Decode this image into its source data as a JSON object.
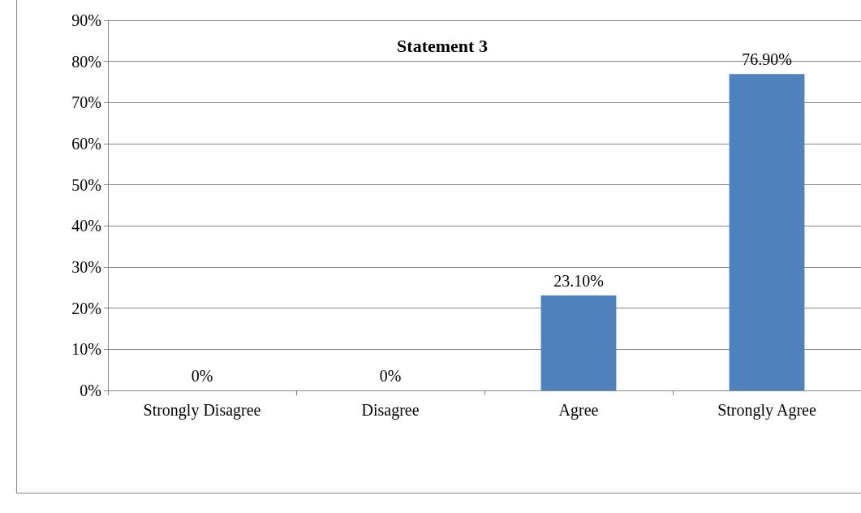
{
  "chart_data": {
    "type": "bar",
    "title": "Statement 3",
    "categories": [
      "Strongly Disagree",
      "Disagree",
      "Agree",
      "Strongly Agree"
    ],
    "values": [
      0,
      0,
      23.1,
      76.9
    ],
    "color": "#4f81bd",
    "value_labels": [
      "0%",
      "0%",
      "23.10%",
      "76.90%"
    ],
    "ylim": [
      0,
      90
    ],
    "yticks": [
      {
        "value": 0,
        "label": "0%"
      },
      {
        "value": 10,
        "label": "10%"
      },
      {
        "value": 20,
        "label": "20%"
      },
      {
        "value": 30,
        "label": "30%"
      },
      {
        "value": 40,
        "label": "40%"
      },
      {
        "value": 50,
        "label": "50%"
      },
      {
        "value": 60,
        "label": "60%"
      },
      {
        "value": 70,
        "label": "70%"
      },
      {
        "value": 80,
        "label": "80%"
      },
      {
        "value": 90,
        "label": "90%"
      }
    ],
    "grid": "y"
  }
}
